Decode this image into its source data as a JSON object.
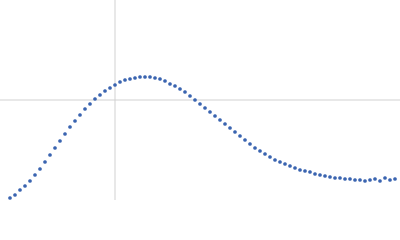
{
  "chart_data": {
    "type": "scatter",
    "color": "#3a64b0",
    "grid": true,
    "xlim": [
      0,
      400
    ],
    "ylim": [
      0,
      200
    ],
    "xticks": [
      115
    ],
    "yticks": [
      100
    ],
    "x": [
      10,
      15,
      20,
      25,
      30,
      35,
      40,
      45,
      50,
      55,
      60,
      65,
      70,
      75,
      80,
      85,
      90,
      95,
      100,
      105,
      110,
      115,
      120,
      125,
      130,
      135,
      140,
      145,
      150,
      155,
      160,
      165,
      170,
      175,
      180,
      185,
      190,
      195,
      200,
      205,
      210,
      215,
      220,
      225,
      230,
      235,
      240,
      245,
      250,
      255,
      260,
      265,
      270,
      275,
      280,
      285,
      290,
      295,
      300,
      305,
      310,
      315,
      320,
      325,
      330,
      335,
      340,
      345,
      350,
      355,
      360,
      365,
      370,
      375,
      380,
      385,
      390,
      395
    ],
    "y": [
      2,
      5,
      10,
      14,
      19,
      25,
      31,
      38,
      45,
      52,
      59,
      66,
      73,
      79,
      85,
      91,
      96,
      101,
      105,
      109,
      112,
      115,
      118,
      120,
      121,
      122,
      123,
      123,
      123,
      122,
      121,
      119,
      116,
      114,
      111,
      108,
      104,
      100,
      96,
      92,
      88,
      84,
      80,
      76,
      72,
      68,
      64,
      60,
      56,
      52,
      49,
      46,
      43,
      40,
      38,
      36,
      34,
      32,
      30,
      29,
      28,
      26,
      25,
      24,
      23,
      22,
      22,
      21,
      21,
      20,
      20,
      19,
      20,
      21,
      19,
      22,
      20,
      21
    ]
  }
}
